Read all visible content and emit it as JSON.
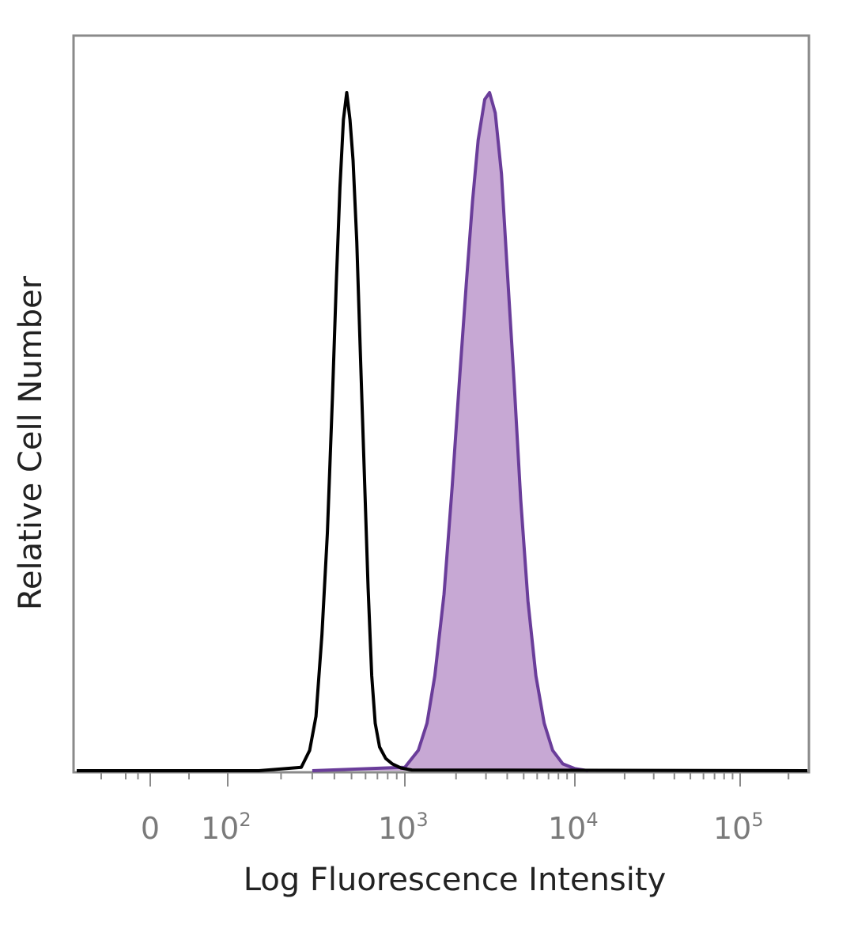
{
  "chart_data": {
    "type": "area",
    "xlabel": "Log Fluorescence Intensity",
    "ylabel": "Relative Cell Number",
    "xscale": "biexponential (log)",
    "xlim": [
      -300,
      262144
    ],
    "ylim": [
      0,
      1
    ],
    "grid": false,
    "legend": "none",
    "x_ticks": [
      {
        "value": 0,
        "base": "0",
        "exp": ""
      },
      {
        "value": 100,
        "base": "10",
        "exp": "2"
      },
      {
        "value": 1000,
        "base": "10",
        "exp": "3"
      },
      {
        "value": 10000,
        "base": "10",
        "exp": "4"
      },
      {
        "value": 100000,
        "base": "10",
        "exp": "5"
      }
    ],
    "series": [
      {
        "style": "outline",
        "color": "#000000",
        "points": [
          [
            -300,
            0
          ],
          [
            150,
            0
          ],
          [
            260,
            0.005
          ],
          [
            290,
            0.03
          ],
          [
            315,
            0.08
          ],
          [
            340,
            0.2
          ],
          [
            365,
            0.35
          ],
          [
            390,
            0.55
          ],
          [
            410,
            0.72
          ],
          [
            430,
            0.86
          ],
          [
            450,
            0.96
          ],
          [
            470,
            1.0
          ],
          [
            490,
            0.96
          ],
          [
            510,
            0.9
          ],
          [
            535,
            0.78
          ],
          [
            560,
            0.62
          ],
          [
            590,
            0.44
          ],
          [
            620,
            0.27
          ],
          [
            650,
            0.14
          ],
          [
            680,
            0.07
          ],
          [
            720,
            0.035
          ],
          [
            780,
            0.018
          ],
          [
            850,
            0.01
          ],
          [
            950,
            0.004
          ],
          [
            1100,
            0.001
          ],
          [
            262144,
            0
          ]
        ]
      },
      {
        "style": "filled",
        "color": "#6a3d9a",
        "fill": "#c7a8d4",
        "points": [
          [
            300,
            0
          ],
          [
            1000,
            0.005
          ],
          [
            1200,
            0.03
          ],
          [
            1350,
            0.07
          ],
          [
            1500,
            0.14
          ],
          [
            1700,
            0.26
          ],
          [
            1900,
            0.42
          ],
          [
            2100,
            0.58
          ],
          [
            2300,
            0.72
          ],
          [
            2500,
            0.84
          ],
          [
            2700,
            0.93
          ],
          [
            2950,
            0.99
          ],
          [
            3150,
            1.0
          ],
          [
            3400,
            0.97
          ],
          [
            3700,
            0.88
          ],
          [
            4000,
            0.74
          ],
          [
            4400,
            0.57
          ],
          [
            4800,
            0.4
          ],
          [
            5300,
            0.25
          ],
          [
            5900,
            0.14
          ],
          [
            6600,
            0.07
          ],
          [
            7400,
            0.03
          ],
          [
            8500,
            0.01
          ],
          [
            10000,
            0.003
          ],
          [
            12000,
            0
          ]
        ]
      }
    ]
  }
}
